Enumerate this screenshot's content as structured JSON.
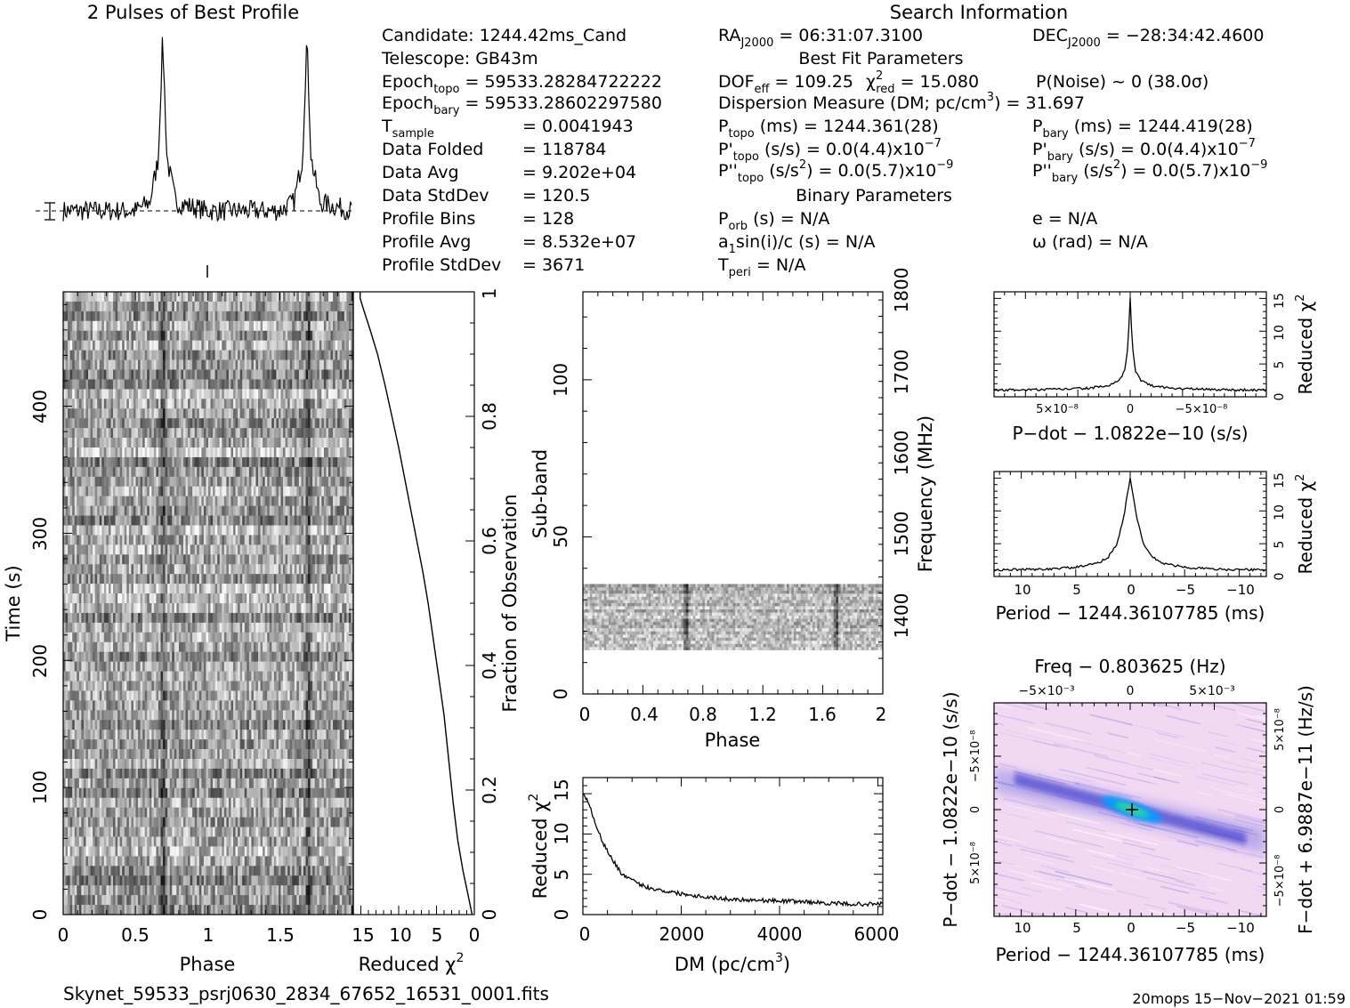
{
  "header": {
    "profile_title": "2 Pulses of Best Profile",
    "search_title": "Search Information",
    "best_fit_title": "Best Fit Parameters",
    "binary_title": "Binary Parameters"
  },
  "info": {
    "candidate": "Candidate:  1244.42ms_Cand",
    "telescope": "Telescope:  GB43m",
    "epoch_topo_label": "Epoch",
    "epoch_topo_sub": "topo",
    "epoch_topo_val": " = 59533.28284722222",
    "epoch_bary_label": "Epoch",
    "epoch_bary_sub": "bary",
    "epoch_bary_val": " = 59533.28602297580",
    "tsample_label": "T",
    "tsample_sub": "sample",
    "tsample_val": "=   0.0041943",
    "data_folded_label": "Data Folded",
    "data_folded_val": "=   118784",
    "data_avg_label": "Data Avg",
    "data_avg_val": "=   9.202e+04",
    "data_std_label": "Data StdDev",
    "data_std_val": "=   120.5",
    "prof_bins_label": "Profile Bins",
    "prof_bins_val": "=   128",
    "prof_avg_label": "Profile Avg",
    "prof_avg_val": "=   8.532e+07",
    "prof_std_label": "Profile StdDev",
    "prof_std_val": "=   3671",
    "ra_label": "RA",
    "ra_sub": "J2000",
    "ra_val": " = 06:31:07.3100",
    "dec_label": "DEC",
    "dec_sub": "J2000",
    "dec_val": " = −28:34:42.4600",
    "dof": "DOF",
    "dof_sub": "eff",
    "dof_val": " = 109.25",
    "chi_sym": "χ",
    "chi_sup": "2",
    "chi_sub": "red",
    "chi_val": " = 15.080",
    "pnoise": "P(Noise) ~ 0   (38.0σ)",
    "dm_text": "Dispersion Measure (DM; pc/cm",
    "dm_sup": "3",
    "dm_val": ") = 31.697",
    "ptopo_label": "P",
    "ptopo_sub": "topo",
    "ptopo_val": " (ms) =  1244.361(28)",
    "pbary_label": "P",
    "pbary_sub": "bary",
    "pbary_val": " (ms) =  1244.419(28)",
    "pdtopo_label": "P'",
    "pdtopo_sub": "topo",
    "pdtopo_val": " (s/s) = 0.0(4.4)x10",
    "pdtopo_exp": "−7",
    "pdbary_label": "P'",
    "pdbary_sub": "bary",
    "pdbary_val": " (s/s) = 0.0(4.4)x10",
    "pdbary_exp": "−7",
    "pddtopo_label": "P''",
    "pddtopo_sub": "topo",
    "pddtopo_val": " (s/s",
    "pddtopo_sup": "2",
    "pddtopo_val2": ") = 0.0(5.7)x10",
    "pddtopo_exp": "−9",
    "pddbary_label": "P''",
    "pddbary_sub": "bary",
    "pddbary_val": " (s/s",
    "pddbary_sup": "2",
    "pddbary_val2": ") = 0.0(5.7)x10",
    "pddbary_exp": "−9",
    "porb_label": "P",
    "porb_sub": "orb",
    "porb_val": " (s) = N/A",
    "a1_label": "a",
    "a1_sub": "1",
    "a1_val": "sin(i)/c (s) = N/A",
    "tperi_label": "T",
    "tperi_sub": "peri",
    "tperi_val": " = N/A",
    "ecc": "e = N/A",
    "omega": "ω (rad) = N/A"
  },
  "footer": {
    "filename": "Skynet_59533_psrj0630_2834_67652_16531_0001.fits",
    "stamp": "20mops 15−Nov−2021 01:59"
  },
  "colors": {
    "ink": "#000000",
    "pdot_bg": "#f2d9f2",
    "pdot_blue": "#3a3ad8",
    "pdot_peak": "#2fd3a0"
  },
  "chart_data": [
    {
      "type": "line",
      "title": "2 Pulses of Best Profile",
      "xlabel": "",
      "ylabel": "",
      "x": [
        0,
        0.25,
        0.5,
        0.6,
        0.66,
        0.69,
        0.72,
        0.78,
        1.0,
        1.25,
        1.5,
        1.6,
        1.66,
        1.69,
        1.72,
        1.78,
        2.0
      ],
      "values": [
        0,
        0,
        0,
        0.05,
        0.3,
        1.0,
        0.3,
        0.05,
        0,
        0,
        0,
        0.05,
        0.3,
        1.0,
        0.3,
        0.05,
        0
      ],
      "ylim": [
        -0.15,
        1.05
      ]
    },
    {
      "type": "heatmap",
      "title": "",
      "xlabel": "Phase",
      "ylabel": "Time (s)",
      "xlim": [
        0,
        2
      ],
      "ylim": [
        0,
        490
      ],
      "x_ticks": [
        "0",
        "0.5",
        "1",
        "1.5"
      ],
      "y_ticks": [
        "0",
        "100",
        "200",
        "300",
        "400"
      ],
      "pulse_phases": [
        0.69,
        1.69
      ]
    },
    {
      "type": "line",
      "title": "",
      "xlabel": "Reduced χ",
      "xlabel_sup": "2",
      "ylabel": "Fraction of Observation",
      "x_ticks": [
        "15",
        "10",
        "5",
        "0"
      ],
      "y_ticks": [
        "0",
        "0.2",
        "0.4",
        "0.6",
        "0.8",
        "1"
      ],
      "xlim": [
        16,
        0
      ],
      "ylim": [
        0,
        1
      ],
      "x": [
        0.3,
        0.8,
        1.5,
        2.2,
        2.8,
        3.4,
        4.0,
        4.7,
        5.4,
        6.1,
        6.8,
        7.6,
        8.4,
        9.2,
        10.0,
        10.9,
        11.8,
        12.8,
        13.8,
        14.6,
        15.1,
        15.08
      ],
      "y": [
        0.0,
        0.03,
        0.07,
        0.12,
        0.18,
        0.25,
        0.32,
        0.38,
        0.44,
        0.5,
        0.55,
        0.6,
        0.65,
        0.7,
        0.75,
        0.8,
        0.85,
        0.9,
        0.94,
        0.97,
        0.99,
        1.0
      ]
    },
    {
      "type": "heatmap",
      "title": "",
      "xlabel": "Phase",
      "ylabel": "Sub-band",
      "y2label": "Frequency (MHz)",
      "x_ticks": [
        "0",
        "0.4",
        "0.8",
        "1.2",
        "1.6",
        "2"
      ],
      "y_ticks": [
        "0",
        "50",
        "100"
      ],
      "y2_ticks": [
        "1400",
        "1500",
        "1600",
        "1700",
        "1800"
      ],
      "xlim": [
        0,
        2
      ],
      "ylim": [
        0,
        128
      ],
      "filled_subbands": [
        14,
        35
      ],
      "pulse_phases": [
        0.69,
        1.69
      ]
    },
    {
      "type": "line",
      "title": "",
      "xlabel": "DM (pc/cm",
      "xlabel_sup": "3",
      "xlabel_end": ")",
      "ylabel": "Reduced χ",
      "ylabel_sup": "2",
      "x_ticks": [
        "0",
        "2000",
        "4000",
        "6000"
      ],
      "y_ticks": [
        "0",
        "5",
        "10",
        "15"
      ],
      "xlim": [
        0,
        6100
      ],
      "ylim": [
        0,
        17
      ],
      "x": [
        0,
        100,
        250,
        400,
        600,
        800,
        1000,
        1300,
        1600,
        2000,
        2500,
        3000,
        3500,
        4000,
        4500,
        5000,
        5500,
        6000,
        6100
      ],
      "y": [
        15.1,
        14.0,
        11.5,
        9.0,
        6.8,
        5.0,
        4.2,
        3.4,
        3.0,
        2.6,
        2.2,
        1.9,
        1.8,
        1.7,
        1.6,
        1.4,
        1.3,
        1.3,
        1.5
      ]
    },
    {
      "type": "line",
      "title": "",
      "xlabel": "P−dot − 1.0822e−10 (s/s)",
      "ylabel": "Reduced χ",
      "ylabel_sup": "2",
      "x_ticks": [
        "5×10⁻⁸",
        "0",
        "−5×10⁻⁸"
      ],
      "y_ticks": [
        "0",
        "5",
        "10",
        "15"
      ],
      "xlim": [
        1.3e-07,
        -1.3e-07
      ],
      "ylim": [
        0,
        16
      ],
      "x": [
        1.3e-07,
        8e-08,
        4e-08,
        2e-08,
        1e-08,
        5e-09,
        2e-09,
        0,
        -2e-09,
        -5e-09,
        -1e-08,
        -2e-08,
        -4e-08,
        -8e-08,
        -1.3e-07
      ],
      "y": [
        1.0,
        1.1,
        1.3,
        1.7,
        2.5,
        4.0,
        8.0,
        15.1,
        8.0,
        4.0,
        2.5,
        1.7,
        1.3,
        1.1,
        1.0
      ]
    },
    {
      "type": "line",
      "title": "",
      "xlabel": "Period − 1244.36107785 (ms)",
      "ylabel": "Reduced χ",
      "ylabel_sup": "2",
      "x_ticks": [
        "10",
        "5",
        "0",
        "−5",
        "−10"
      ],
      "y_ticks": [
        "0",
        "5",
        "10",
        "15"
      ],
      "xlim": [
        12.5,
        -12.5
      ],
      "ylim": [
        0,
        16
      ],
      "x": [
        12.5,
        8,
        5,
        3,
        2,
        1.2,
        0.6,
        0,
        -0.6,
        -1.2,
        -2,
        -3,
        -5,
        -8,
        -12.5
      ],
      "y": [
        1.0,
        1.1,
        1.4,
        2.0,
        3.0,
        5.0,
        9.0,
        15.1,
        9.0,
        5.0,
        3.0,
        2.0,
        1.4,
        1.1,
        1.0
      ]
    },
    {
      "type": "heatmap",
      "title": "Freq − 0.803625 (Hz)",
      "xlabel": "Period − 1244.36107785 (ms)",
      "ylabel": "P−dot − 1.0822e−10 (s/s)",
      "y2label": "F−dot + 6.9887e−11 (Hz/s)",
      "x_ticks": [
        "10",
        "5",
        "0",
        "−5",
        "−10"
      ],
      "x2_ticks": [
        "−5×10⁻³",
        "0",
        "5×10⁻³"
      ],
      "y_ticks": [
        "5×10⁻⁸",
        "0",
        "−5×10⁻⁸"
      ],
      "y2_ticks": [
        "−5×10⁻⁸",
        "0",
        "5×10⁻⁸"
      ],
      "peak": [
        0,
        0
      ]
    }
  ]
}
